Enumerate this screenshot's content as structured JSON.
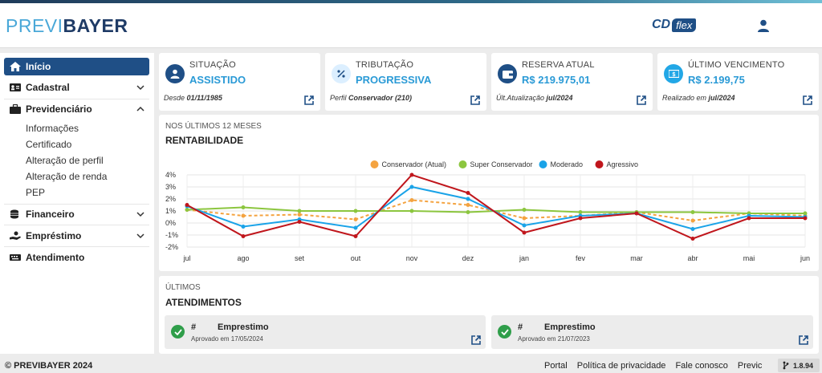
{
  "header": {
    "logo_part1": "PREVI",
    "logo_part2": "BAYER",
    "product_cd": "CD",
    "product_flex": "flex"
  },
  "sidebar": {
    "inicio": "Início",
    "cadastral": "Cadastral",
    "previdenciario": "Previdenciário",
    "sub": [
      "Informações",
      "Certificado",
      "Alteração de perfil",
      "Alteração de renda",
      "PEP"
    ],
    "financeiro": "Financeiro",
    "emprestimo": "Empréstimo",
    "atendimento": "Atendimento"
  },
  "cards": [
    {
      "label": "SITUAÇÃO",
      "value": "ASSISTIDO",
      "foot_prefix": "Desde",
      "foot_value": "01/11/1985",
      "icon": "user-icon"
    },
    {
      "label": "TRIBUTAÇÃO",
      "value": "PROGRESSIVA",
      "foot_prefix": "Perfil",
      "foot_value": "Conservador (210)",
      "icon": "percent-icon"
    },
    {
      "label": "RESERVA ATUAL",
      "value": "R$ 219.975,01",
      "foot_prefix": "Últ.Atualização",
      "foot_value": "jul/2024",
      "icon": "wallet-icon"
    },
    {
      "label": "ÚLTIMO VENCIMENTO",
      "value": "R$ 2.199,75",
      "foot_prefix": "Realizado em",
      "foot_value": "jul/2024",
      "icon": "money-icon"
    }
  ],
  "rentabilidade": {
    "subtitle": "NOS ÚLTIMOS 12 MESES",
    "title": "RENTABILIDADE"
  },
  "chart_data": {
    "type": "line",
    "categories": [
      "jul",
      "ago",
      "set",
      "out",
      "nov",
      "dez",
      "jan",
      "fev",
      "mar",
      "abr",
      "mai",
      "jun"
    ],
    "ylim": [
      -2,
      4
    ],
    "yticks": [
      "4%",
      "3%",
      "2%",
      "1%",
      "0%",
      "-1%",
      "-2%"
    ],
    "grid": true,
    "legend": "top",
    "series": [
      {
        "name": "Conservador (Atual)",
        "color": "#f4a340",
        "dashed": true,
        "values": [
          1.1,
          0.6,
          0.7,
          0.3,
          1.9,
          1.5,
          0.4,
          0.6,
          0.9,
          0.2,
          0.8,
          0.6
        ]
      },
      {
        "name": "Super Conservador",
        "color": "#8cc63f",
        "dashed": false,
        "values": [
          1.1,
          1.3,
          1.0,
          1.0,
          1.0,
          0.9,
          1.1,
          0.9,
          0.9,
          0.9,
          0.8,
          0.8
        ]
      },
      {
        "name": "Moderado",
        "color": "#1aa3e8",
        "dashed": false,
        "values": [
          1.4,
          -0.3,
          0.3,
          -0.4,
          3.0,
          2.0,
          -0.2,
          0.6,
          0.8,
          -0.5,
          0.6,
          0.5
        ]
      },
      {
        "name": "Agressivo",
        "color": "#c0161c",
        "dashed": false,
        "values": [
          1.5,
          -1.1,
          0.1,
          -1.1,
          4.0,
          2.5,
          -0.8,
          0.4,
          0.8,
          -1.3,
          0.4,
          0.4
        ]
      }
    ]
  },
  "atendimentos": {
    "subtitle": "ÚLTIMOS",
    "title": "ATENDIMENTOS",
    "items": [
      {
        "hash": "#",
        "type": "Emprestimo",
        "date": "Aprovado em 17/05/2024"
      },
      {
        "hash": "#",
        "type": "Emprestimo",
        "date": "Aprovado em 21/07/2023"
      }
    ]
  },
  "footer": {
    "copyright": "© PREVIBAYER 2024",
    "links": [
      "Portal",
      "Política de privacidade",
      "Fale conosco",
      "Previc"
    ],
    "version": "1.8.94"
  }
}
